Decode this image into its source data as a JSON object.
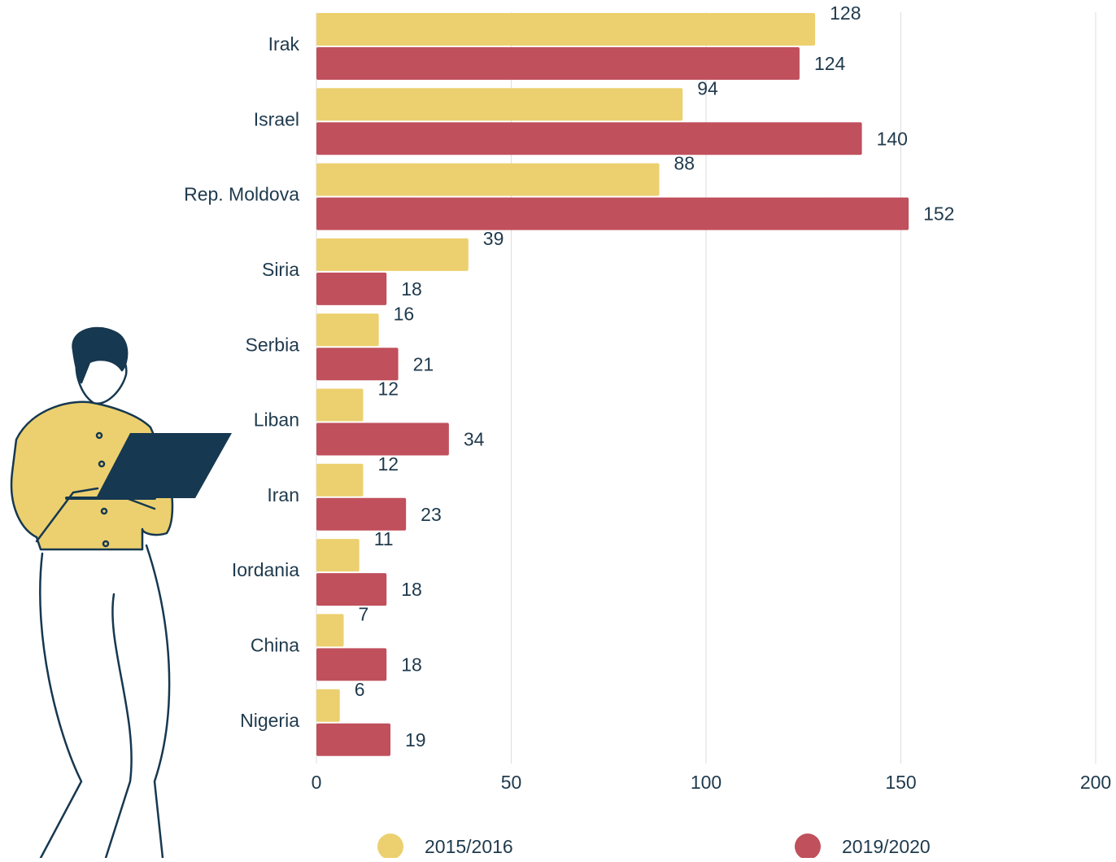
{
  "chart_data": {
    "type": "bar",
    "orientation": "horizontal",
    "categories": [
      "Irak",
      "Israel",
      "Rep. Moldova",
      "Siria",
      "Serbia",
      "Liban",
      "Iran",
      "Iordania",
      "China",
      "Nigeria"
    ],
    "series": [
      {
        "name": "2015/2016",
        "color": "#ecd06f",
        "values": [
          128,
          94,
          88,
          39,
          16,
          12,
          12,
          11,
          7,
          6
        ]
      },
      {
        "name": "2019/2020",
        "color": "#c0505c",
        "values": [
          124,
          140,
          152,
          18,
          21,
          34,
          23,
          18,
          18,
          19
        ]
      }
    ],
    "xlim": [
      0,
      200
    ],
    "xticks": [
      0,
      50,
      100,
      150,
      200
    ],
    "grid": true
  }
}
